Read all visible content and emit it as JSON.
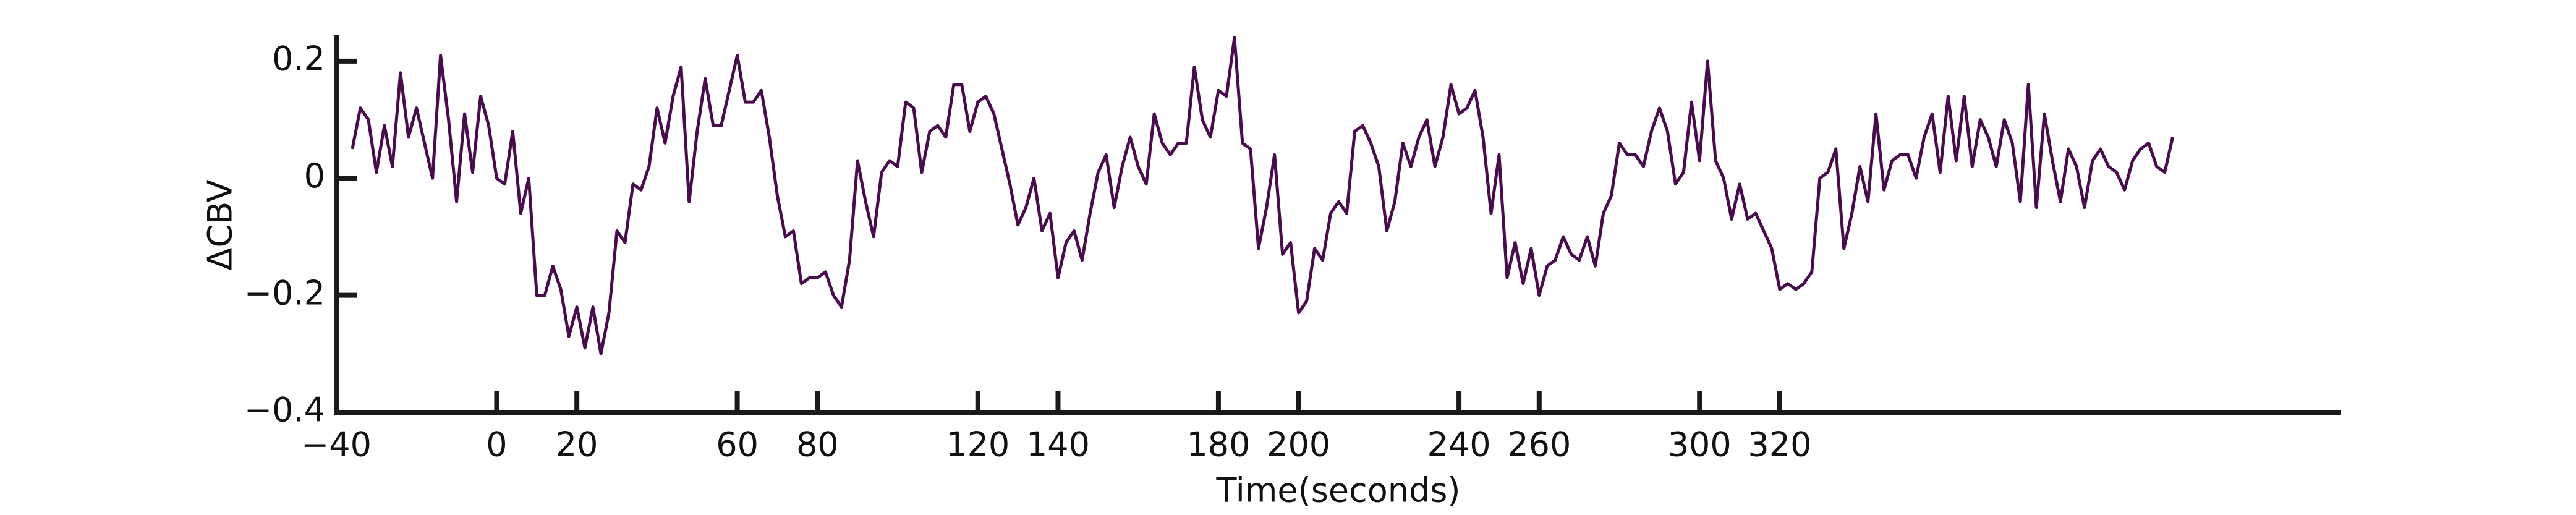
{
  "chart_data": {
    "type": "line",
    "xlabel": "Time(seconds)",
    "ylabel": "ΔCBV",
    "color": "#4a0c4e",
    "xlim": [
      -40,
      460
    ],
    "ylim": [
      -0.4,
      0.24
    ],
    "xticks": [
      {
        "value": -40,
        "label": "−40"
      },
      0,
      20,
      60,
      80,
      120,
      140,
      180,
      200,
      240,
      260,
      300,
      320
    ],
    "yticks": [
      {
        "value": -0.4,
        "label": "−0.4"
      },
      {
        "value": -0.2,
        "label": "−0.2"
      },
      0,
      0.2
    ],
    "x": [
      -36,
      -34,
      -32,
      -30,
      -28,
      -26,
      -24,
      -22,
      -20,
      -18,
      -16,
      -14,
      -12,
      -10,
      -8,
      -6,
      -4,
      -2,
      0,
      2,
      4,
      6,
      8,
      10,
      12,
      14,
      16,
      18,
      20,
      22,
      24,
      26,
      28,
      30,
      32,
      34,
      36,
      38,
      40,
      42,
      44,
      46,
      48,
      50,
      52,
      54,
      56,
      58,
      60,
      62,
      64,
      66,
      68,
      70,
      72,
      74,
      76,
      78,
      80,
      82,
      84,
      86,
      88,
      90,
      92,
      94,
      96,
      98,
      100,
      102,
      104,
      106,
      108,
      110,
      112,
      114,
      116,
      118,
      120,
      122,
      124,
      126,
      128,
      130,
      132,
      134,
      136,
      138,
      140,
      142,
      144,
      146,
      148,
      150,
      152,
      154,
      156,
      158,
      160,
      162,
      164,
      166,
      168,
      170,
      172,
      174,
      176,
      178,
      180,
      182,
      184,
      186,
      188,
      190,
      192,
      194,
      196,
      198,
      200,
      202,
      204,
      206,
      208,
      210,
      212,
      214,
      216,
      218,
      220,
      222,
      224,
      226,
      228,
      230,
      232,
      234,
      236,
      238,
      240,
      242,
      244,
      246,
      248,
      250,
      252,
      254,
      256,
      258,
      260,
      262,
      264,
      266,
      268,
      270,
      272,
      274,
      276,
      278,
      280,
      282,
      284,
      286,
      288,
      290,
      292,
      294,
      296,
      298,
      300,
      302,
      304,
      306,
      308,
      310,
      312,
      314,
      316,
      318,
      320,
      322,
      324,
      326,
      328,
      330,
      332,
      334,
      336,
      338,
      340,
      342,
      344,
      346,
      348,
      350,
      352,
      354,
      356,
      358,
      360,
      362,
      364,
      366,
      368,
      370,
      372,
      374,
      376,
      378,
      380,
      382,
      384,
      386,
      388,
      390,
      392,
      394,
      396,
      398,
      400,
      402,
      404,
      406,
      408,
      410,
      412,
      414,
      416,
      418
    ],
    "values": [
      0.05,
      0.12,
      0.1,
      0.01,
      0.09,
      0.02,
      0.18,
      0.07,
      0.12,
      0.06,
      0,
      0.21,
      0.1,
      -0.04,
      0.11,
      0.01,
      0.14,
      0.09,
      0,
      -0.01,
      0.08,
      -0.06,
      0,
      -0.2,
      -0.2,
      -0.15,
      -0.19,
      -0.27,
      -0.22,
      -0.29,
      -0.22,
      -0.3,
      -0.23,
      -0.09,
      -0.11,
      -0.01,
      -0.02,
      0.02,
      0.12,
      0.06,
      0.14,
      0.19,
      -0.04,
      0.08,
      0.17,
      0.09,
      0.09,
      0.15,
      0.21,
      0.13,
      0.13,
      0.15,
      0.07,
      -0.03,
      -0.1,
      -0.09,
      -0.18,
      -0.17,
      -0.17,
      -0.16,
      -0.2,
      -0.22,
      -0.14,
      0.03,
      -0.04,
      -0.1,
      0.01,
      0.03,
      0.02,
      0.13,
      0.12,
      0.01,
      0.08,
      0.09,
      0.07,
      0.16,
      0.16,
      0.08,
      0.13,
      0.14,
      0.11,
      0.05,
      -0.01,
      -0.08,
      -0.05,
      0,
      -0.09,
      -0.06,
      -0.17,
      -0.11,
      -0.09,
      -0.14,
      -0.06,
      0.01,
      0.04,
      -0.05,
      0.02,
      0.07,
      0.02,
      -0.01,
      0.11,
      0.06,
      0.04,
      0.06,
      0.06,
      0.19,
      0.1,
      0.07,
      0.15,
      0.14,
      0.24,
      0.06,
      0.05,
      -0.12,
      -0.05,
      0.04,
      -0.13,
      -0.11,
      -0.23,
      -0.21,
      -0.12,
      -0.14,
      -0.06,
      -0.04,
      -0.06,
      0.08,
      0.09,
      0.06,
      0.02,
      -0.09,
      -0.04,
      0.06,
      0.02,
      0.07,
      0.1,
      0.02,
      0.07,
      0.16,
      0.11,
      0.12,
      0.15,
      0.07,
      -0.06,
      0.04,
      -0.17,
      -0.11,
      -0.18,
      -0.12,
      -0.2,
      -0.15,
      -0.14,
      -0.1,
      -0.13,
      -0.14,
      -0.1,
      -0.15,
      -0.06,
      -0.03,
      0.06,
      0.04,
      0.04,
      0.02,
      0.08,
      0.12,
      0.08,
      -0.01,
      0.01,
      0.13,
      0.03,
      0.2,
      0.03,
      0,
      -0.07,
      -0.01,
      -0.07,
      -0.06,
      -0.09,
      -0.12,
      -0.19,
      -0.18,
      -0.19,
      -0.18,
      -0.16,
      0,
      0.01,
      0.05,
      -0.12,
      -0.06,
      0.02,
      -0.04,
      0.11,
      -0.02,
      0.03,
      0.04,
      0.04,
      0,
      0.07,
      0.11,
      0.01,
      0.14,
      0.03,
      0.14,
      0.02,
      0.1,
      0.07,
      0.02,
      0.1,
      0.06,
      -0.04,
      0.16,
      -0.05,
      0.11,
      0.03,
      -0.04,
      0.05,
      0.02,
      -0.05,
      0.03,
      0.05,
      0.02,
      0.01,
      -0.02,
      0.03,
      0.05,
      0.06,
      0.02,
      0.01,
      0.07
    ]
  }
}
